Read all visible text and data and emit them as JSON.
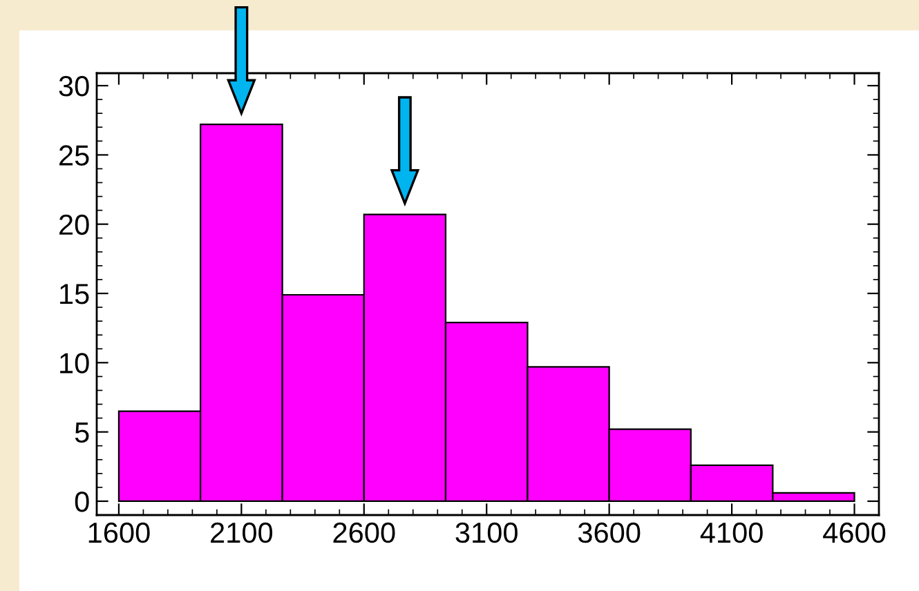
{
  "chart_data": {
    "type": "histogram",
    "bins": [
      1600,
      1933,
      2267,
      2600,
      2933,
      3267,
      3600,
      3933,
      4267,
      4600
    ],
    "values": [
      6.5,
      27.2,
      14.9,
      20.7,
      12.9,
      9.7,
      5.2,
      2.6,
      0.6
    ],
    "color": "#ff00ff",
    "xlim": [
      1510,
      4700
    ],
    "ylim": [
      -1,
      30.9
    ],
    "xticks": [
      1600,
      2100,
      2600,
      3100,
      3600,
      4100,
      4600
    ],
    "yticks": [
      0,
      5,
      10,
      15,
      20,
      25,
      30
    ],
    "grid": false
  }
}
